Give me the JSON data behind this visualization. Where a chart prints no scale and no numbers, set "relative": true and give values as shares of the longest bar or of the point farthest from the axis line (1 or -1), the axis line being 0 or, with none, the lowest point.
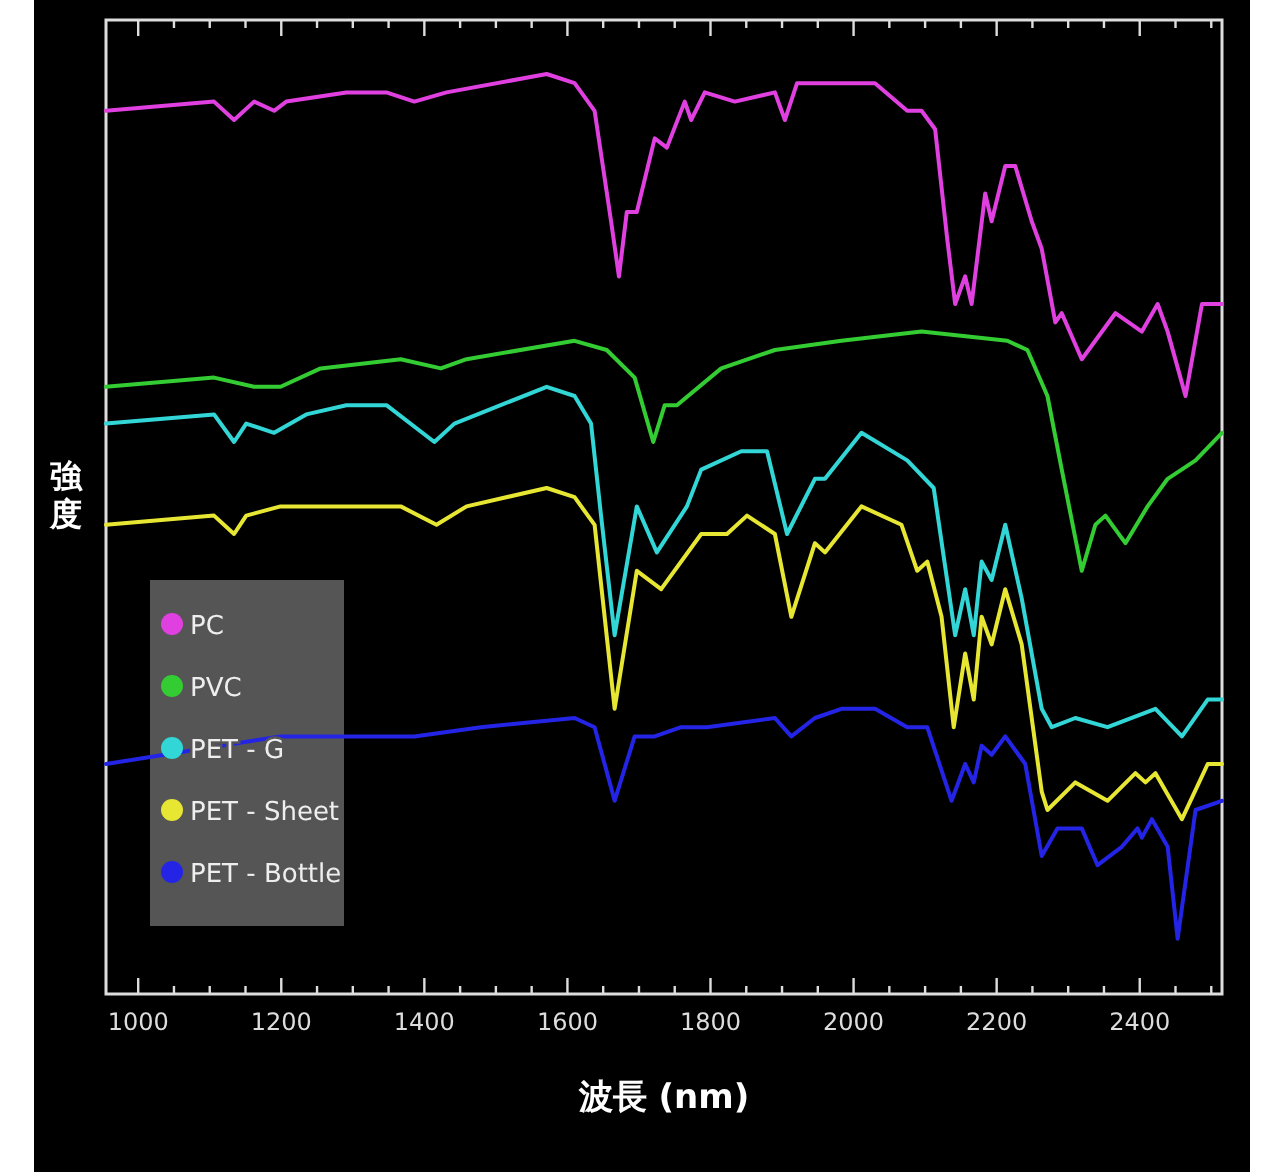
{
  "chart_data": {
    "type": "line",
    "relative": true,
    "xlabel": "波長 (nm)",
    "ylabel": "強度",
    "xlim": [
      955,
      2515
    ],
    "xticks": [
      1000,
      {
        "value": 1050,
        "label": null
      },
      {
        "value": 1100,
        "label": null
      },
      {
        "value": 1150,
        "label": null
      },
      1200,
      {
        "value": 1250,
        "label": null
      },
      {
        "value": 1300,
        "label": null
      },
      {
        "value": 1350,
        "label": null
      },
      1400,
      {
        "value": 1450,
        "label": null
      },
      {
        "value": 1500,
        "label": null
      },
      {
        "value": 1550,
        "label": null
      },
      1600,
      {
        "value": 1650,
        "label": null
      },
      {
        "value": 1700,
        "label": null
      },
      {
        "value": 1750,
        "label": null
      },
      1800,
      {
        "value": 1850,
        "label": null
      },
      {
        "value": 1900,
        "label": null
      },
      {
        "value": 1950,
        "label": null
      },
      2000,
      {
        "value": 2050,
        "label": null
      },
      {
        "value": 2100,
        "label": null
      },
      {
        "value": 2150,
        "label": null
      },
      2200,
      {
        "value": 2250,
        "label": null
      },
      {
        "value": 2300,
        "label": null
      },
      {
        "value": 2350,
        "label": null
      },
      2400,
      {
        "value": 2450,
        "label": null
      },
      {
        "value": 2500,
        "label": null
      }
    ],
    "legend": "bottom left",
    "series": [
      {
        "name": "PC",
        "color": "#e040e0",
        "x": [
          955,
          1106,
          1134,
          1162,
          1190,
          1207,
          1291,
          1347,
          1386,
          1431,
          1571,
          1610,
          1638,
          1661,
          1672,
          1683,
          1697,
          1722,
          1739,
          1764,
          1773,
          1792,
          1834,
          1890,
          1904,
          1921,
          1963,
          2030,
          2075,
          2095,
          2114,
          2131,
          2142,
          2156,
          2165,
          2184,
          2193,
          2212,
          2226,
          2249,
          2263,
          2282,
          2291,
          2319,
          2366,
          2403,
          2425,
          2439,
          2464,
          2487,
          2515
        ],
        "values": [
          0.96,
          0.97,
          0.95,
          0.97,
          0.96,
          0.97,
          0.98,
          0.98,
          0.97,
          0.98,
          1.0,
          0.99,
          0.96,
          0.84,
          0.78,
          0.85,
          0.85,
          0.93,
          0.92,
          0.97,
          0.95,
          0.98,
          0.97,
          0.98,
          0.95,
          0.99,
          0.99,
          0.99,
          0.96,
          0.96,
          0.94,
          0.82,
          0.75,
          0.78,
          0.75,
          0.87,
          0.84,
          0.9,
          0.9,
          0.84,
          0.81,
          0.73,
          0.74,
          0.69,
          0.74,
          0.72,
          0.75,
          0.72,
          0.65,
          0.75,
          0.75
        ]
      },
      {
        "name": "PVC",
        "color": "#33cc33",
        "x": [
          955,
          1106,
          1162,
          1179,
          1199,
          1255,
          1367,
          1423,
          1459,
          1610,
          1655,
          1694,
          1720,
          1736,
          1753,
          1815,
          1890,
          1983,
          2095,
          2215,
          2243,
          2271,
          2291,
          2319,
          2338,
          2352,
          2380,
          2411,
          2439,
          2478,
          2515
        ],
        "values": [
          0.66,
          0.67,
          0.66,
          0.66,
          0.66,
          0.68,
          0.69,
          0.68,
          0.69,
          0.71,
          0.7,
          0.67,
          0.6,
          0.64,
          0.64,
          0.68,
          0.7,
          0.71,
          0.72,
          0.71,
          0.7,
          0.65,
          0.57,
          0.46,
          0.51,
          0.52,
          0.49,
          0.53,
          0.56,
          0.58,
          0.61
        ]
      },
      {
        "name": "PET - G",
        "color": "#33d6d6",
        "x": [
          955,
          1106,
          1134,
          1151,
          1190,
          1235,
          1291,
          1347,
          1414,
          1442,
          1571,
          1610,
          1633,
          1647,
          1666,
          1697,
          1725,
          1767,
          1787,
          1843,
          1879,
          1907,
          1946,
          1960,
          2011,
          2075,
          2112,
          2142,
          2156,
          2168,
          2179,
          2193,
          2212,
          2235,
          2263,
          2277,
          2310,
          2355,
          2422,
          2459,
          2495,
          2515
        ],
        "values": [
          0.62,
          0.63,
          0.6,
          0.62,
          0.61,
          0.63,
          0.64,
          0.64,
          0.6,
          0.62,
          0.66,
          0.65,
          0.62,
          0.52,
          0.39,
          0.53,
          0.48,
          0.53,
          0.57,
          0.59,
          0.59,
          0.5,
          0.56,
          0.56,
          0.61,
          0.58,
          0.55,
          0.39,
          0.44,
          0.39,
          0.47,
          0.45,
          0.51,
          0.43,
          0.31,
          0.29,
          0.3,
          0.29,
          0.31,
          0.28,
          0.32,
          0.32
        ]
      },
      {
        "name": "PET - Sheet",
        "color": "#e6e633",
        "x": [
          955,
          1106,
          1134,
          1151,
          1199,
          1311,
          1367,
          1417,
          1459,
          1571,
          1610,
          1638,
          1666,
          1697,
          1731,
          1787,
          1823,
          1851,
          1890,
          1913,
          1946,
          1960,
          2011,
          2067,
          2089,
          2103,
          2123,
          2140,
          2156,
          2168,
          2179,
          2193,
          2212,
          2235,
          2263,
          2271,
          2310,
          2355,
          2394,
          2408,
          2422,
          2459,
          2495,
          2515
        ],
        "values": [
          0.51,
          0.52,
          0.5,
          0.52,
          0.53,
          0.53,
          0.53,
          0.51,
          0.53,
          0.55,
          0.54,
          0.51,
          0.31,
          0.46,
          0.44,
          0.5,
          0.5,
          0.52,
          0.5,
          0.41,
          0.49,
          0.48,
          0.53,
          0.51,
          0.46,
          0.47,
          0.41,
          0.29,
          0.37,
          0.32,
          0.41,
          0.38,
          0.44,
          0.38,
          0.22,
          0.2,
          0.23,
          0.21,
          0.24,
          0.23,
          0.24,
          0.19,
          0.25,
          0.25
        ]
      },
      {
        "name": "PET - Bottle",
        "color": "#2424e6",
        "x": [
          955,
          1199,
          1386,
          1479,
          1610,
          1638,
          1666,
          1694,
          1722,
          1759,
          1795,
          1890,
          1913,
          1946,
          1983,
          2030,
          2075,
          2103,
          2137,
          2156,
          2168,
          2179,
          2193,
          2212,
          2240,
          2263,
          2285,
          2319,
          2341,
          2375,
          2397,
          2403,
          2417,
          2439,
          2453,
          2478,
          2515
        ],
        "values": [
          0.25,
          0.28,
          0.28,
          0.29,
          0.3,
          0.29,
          0.21,
          0.28,
          0.28,
          0.29,
          0.29,
          0.3,
          0.28,
          0.3,
          0.31,
          0.31,
          0.29,
          0.29,
          0.21,
          0.25,
          0.23,
          0.27,
          0.26,
          0.28,
          0.25,
          0.15,
          0.18,
          0.18,
          0.14,
          0.16,
          0.18,
          0.17,
          0.19,
          0.16,
          0.06,
          0.2,
          0.21
        ]
      }
    ]
  }
}
